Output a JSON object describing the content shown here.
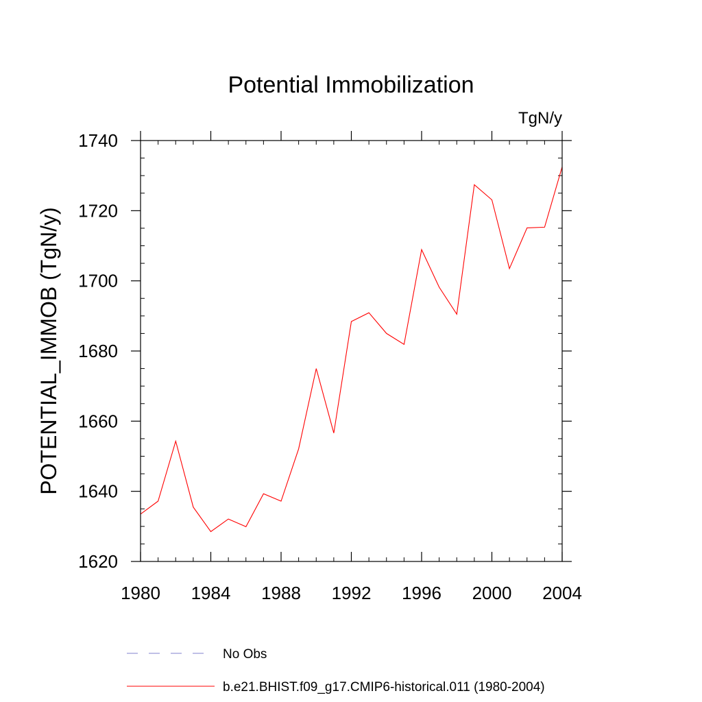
{
  "chart_data": {
    "type": "line",
    "title": "Potential Immobilization",
    "units_label": "TgN/y",
    "ylabel": "POTENTIAL_IMMOB  (TgN/y)",
    "xlabel": "",
    "xlim": [
      1980,
      2004
    ],
    "ylim": [
      1620,
      1740
    ],
    "x_ticks": [
      1980,
      1984,
      1988,
      1992,
      1996,
      2000,
      2004
    ],
    "y_ticks": [
      1620,
      1640,
      1660,
      1680,
      1700,
      1720,
      1740
    ],
    "x_minor_step": 1,
    "y_minor_step": 5,
    "grid": false,
    "legend_position": "bottom",
    "series": [
      {
        "name": "b.e21.BHIST.f09_g17.CMIP6-historical.011 (1980-2004)",
        "color": "#ff0000",
        "dash": "solid",
        "x": [
          1980,
          1981,
          1982,
          1983,
          1984,
          1985,
          1986,
          1987,
          1988,
          1989,
          1990,
          1991,
          1992,
          1993,
          1994,
          1995,
          1996,
          1997,
          1998,
          1999,
          2000,
          2001,
          2002,
          2003,
          2004
        ],
        "y": [
          1633.5,
          1637.2,
          1654.3,
          1635.5,
          1628.5,
          1632.1,
          1629.9,
          1639.3,
          1637.2,
          1652.1,
          1675.0,
          1656.6,
          1688.4,
          1690.9,
          1685.0,
          1681.9,
          1708.9,
          1698.2,
          1690.5,
          1727.4,
          1723.1,
          1703.5,
          1715.1,
          1715.3,
          1732.5
        ]
      }
    ],
    "legend": [
      {
        "label": "No Obs",
        "color": "#8080cc",
        "dash": "dashed"
      },
      {
        "label": "b.e21.BHIST.f09_g17.CMIP6-historical.011 (1980-2004)",
        "color": "#ff0000",
        "dash": "solid"
      }
    ]
  }
}
